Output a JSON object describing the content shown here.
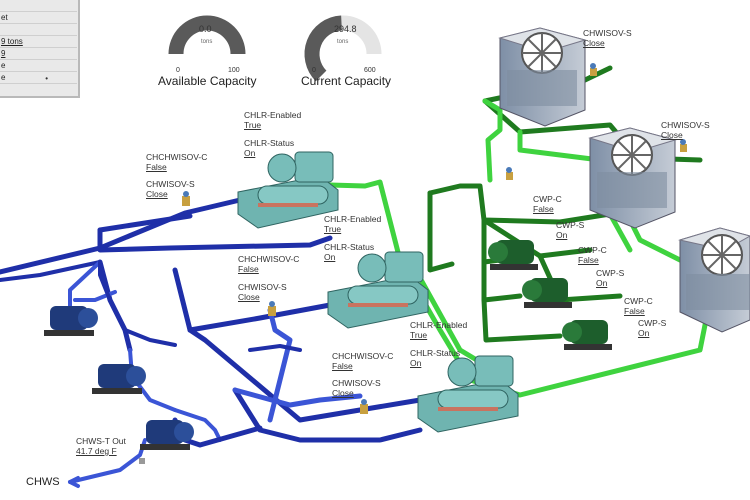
{
  "side_panel": {
    "rows": [
      "",
      "et",
      "",
      "9 tons",
      "9",
      "e",
      "e"
    ]
  },
  "gauges": [
    {
      "title": "Available Capacity",
      "value": "0.0",
      "unit": "tons",
      "min": "0",
      "max": "100",
      "fraction": 0.0
    },
    {
      "title": "Current Capacity",
      "value": "294.8",
      "unit": "tons",
      "min": "0",
      "max": "600",
      "fraction": 0.49
    }
  ],
  "chillers": [
    {
      "enabled_label": "CHLR-Enabled",
      "enabled_value": "True",
      "status_label": "CHLR-Status",
      "status_value": "On",
      "chchwisov_label": "CHCHWISOV-C",
      "chchwisov_value": "False",
      "chwisov_label": "CHWISOV-S",
      "chwisov_value": "Close"
    },
    {
      "enabled_label": "CHLR-Enabled",
      "enabled_value": "True",
      "status_label": "CHLR-Status",
      "status_value": "On",
      "chchwisov_label": "CHCHWISOV-C",
      "chchwisov_value": "False",
      "chwisov_label": "CHWISOV-S",
      "chwisov_value": "Close"
    },
    {
      "enabled_label": "CHLR-Enabled",
      "enabled_value": "True",
      "status_label": "CHLR-Status",
      "status_value": "On",
      "chchwisov_label": "CHCHWISOV-C",
      "chchwisov_value": "False",
      "chwisov_label": "CHWISOV-S",
      "chwisov_value": "Close"
    }
  ],
  "cooling_towers": [
    {
      "label": "CHWISOV-S",
      "value": "Close"
    },
    {
      "label": "CHWISOV-S",
      "value": "Close"
    }
  ],
  "condenser_pumps": [
    {
      "c_label": "CWP-C",
      "c_value": "False",
      "s_label": "CWP-S",
      "s_value": "On"
    },
    {
      "c_label": "CWP-C",
      "c_value": "False",
      "s_label": "CWP-S",
      "s_value": "On"
    },
    {
      "c_label": "CWP-C",
      "c_value": "False",
      "s_label": "CWP-S",
      "s_value": "On"
    }
  ],
  "chws_temp": {
    "label": "CHWS-T Out",
    "value": "41.7 deg F"
  },
  "chws_label": "CHWS",
  "colors": {
    "chilled_water": "#1f2fa8",
    "chilled_water_light": "#3b55d6",
    "condenser_dark": "#1f7a1f",
    "condenser_light": "#3fd33f",
    "equipment": "#6fb4b0",
    "gauge_dark": "#5a5a5a"
  }
}
